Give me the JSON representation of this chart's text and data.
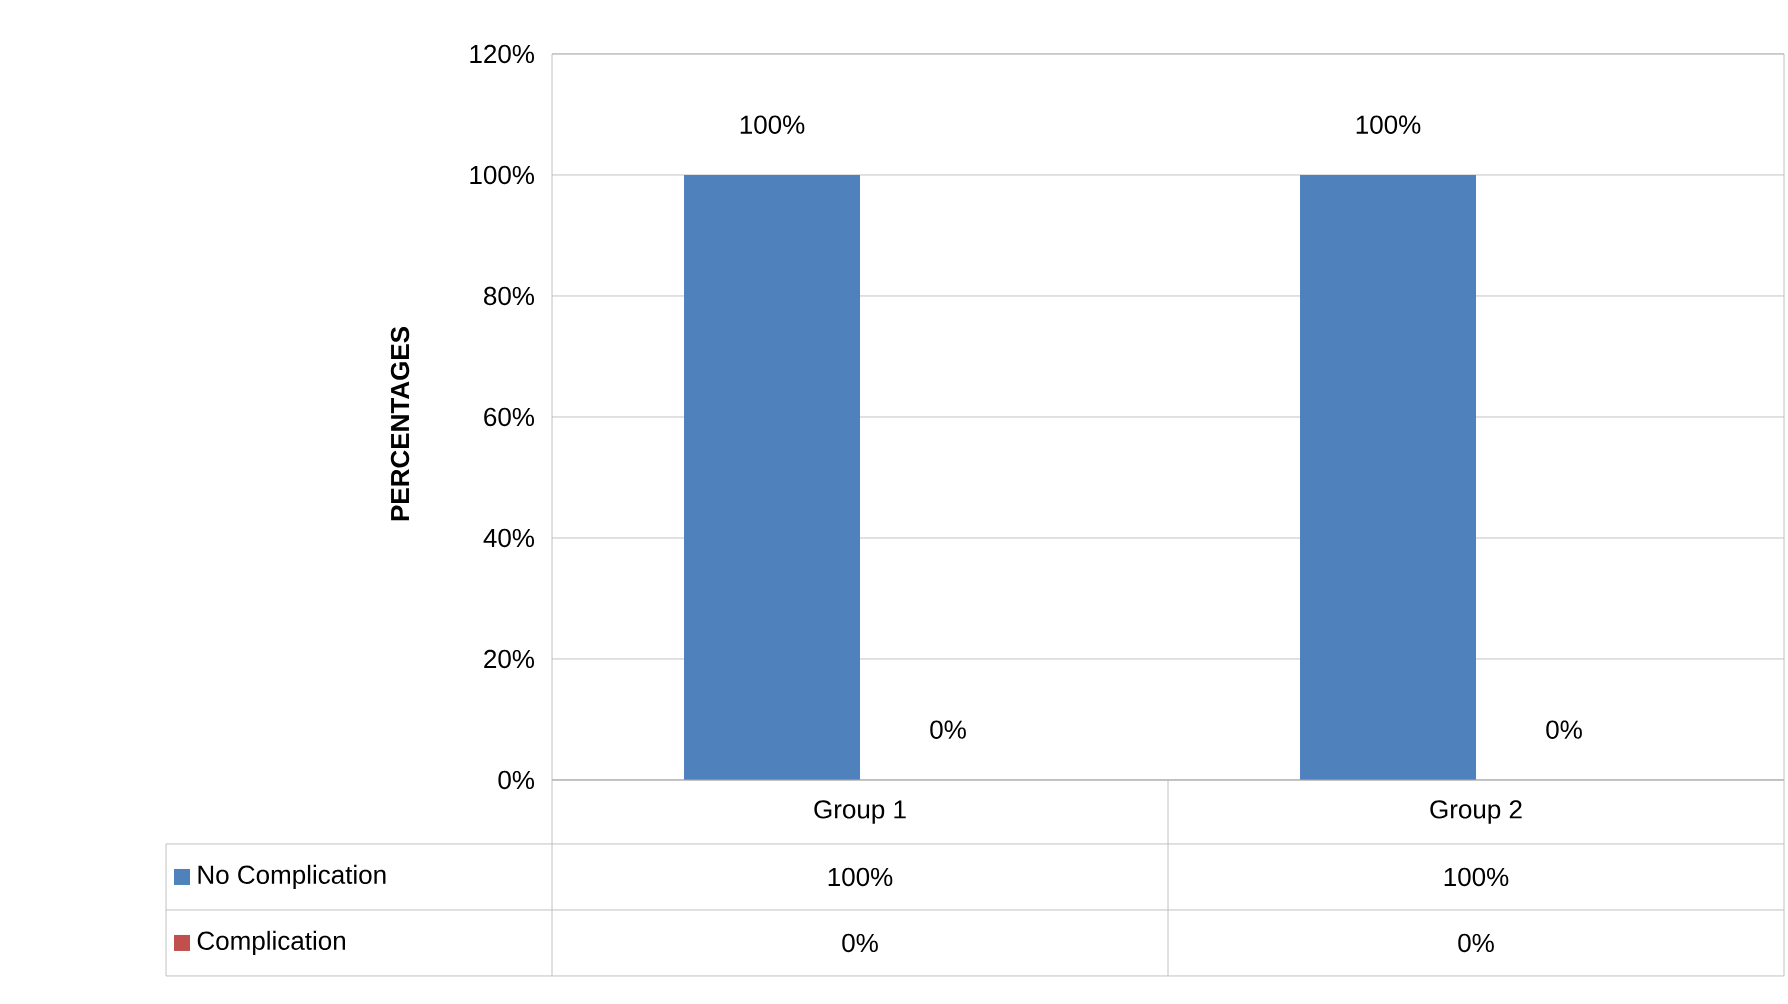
{
  "chart_data": {
    "type": "bar",
    "ylabel": "PERCENTAGES",
    "categories": [
      "Group 1",
      "Group 2"
    ],
    "series": [
      {
        "name": "No Complication",
        "color": "#4f81bd",
        "values": [
          100,
          100
        ],
        "value_labels": [
          "100%",
          "100%"
        ]
      },
      {
        "name": "Complication",
        "color": "#c0504d",
        "values": [
          0,
          0
        ],
        "value_labels": [
          "0%",
          "0%"
        ]
      }
    ],
    "ylim": [
      0,
      120
    ],
    "yticks": [
      {
        "value": 0,
        "label": "0%"
      },
      {
        "value": 20,
        "label": "20%"
      },
      {
        "value": 40,
        "label": "40%"
      },
      {
        "value": 60,
        "label": "60%"
      },
      {
        "value": 80,
        "label": "80%"
      },
      {
        "value": 100,
        "label": "100%"
      },
      {
        "value": 120,
        "label": "120%"
      }
    ],
    "grid": "y",
    "legend": "bottom"
  }
}
